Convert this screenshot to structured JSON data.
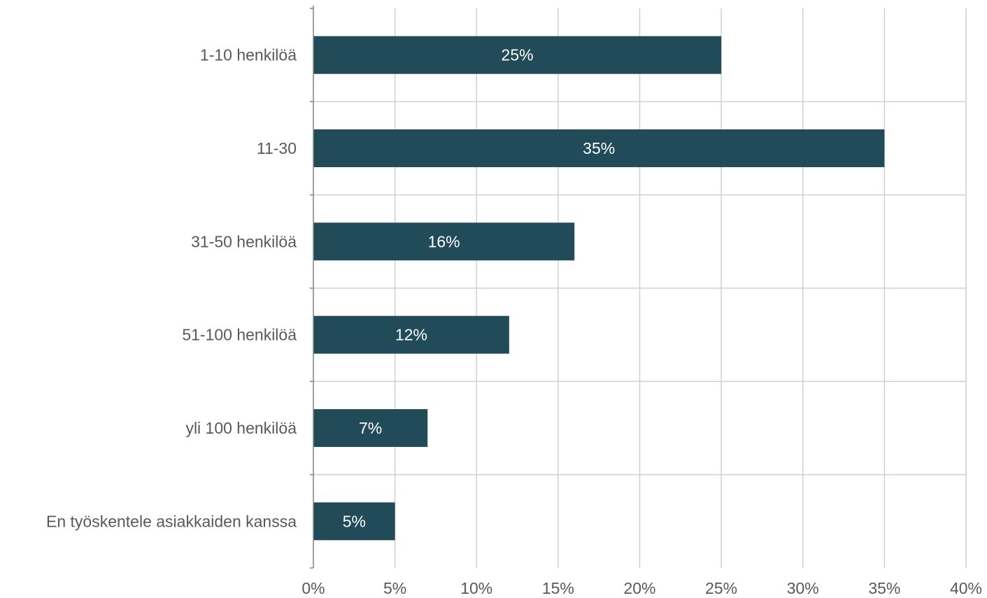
{
  "chart_data": {
    "type": "bar",
    "orientation": "horizontal",
    "categories": [
      "1-10 henkilöä",
      "11-30",
      "31-50 henkilöä",
      "51-100 henkilöä",
      "yli 100 henkilöä",
      "En työskentele asiakkaiden kanssa"
    ],
    "values": [
      25,
      35,
      16,
      12,
      7,
      5
    ],
    "data_labels": [
      "25%",
      "35%",
      "16%",
      "12%",
      "7%",
      "5%"
    ],
    "xlim": [
      0,
      40
    ],
    "x_ticks": [
      0,
      5,
      10,
      15,
      20,
      25,
      30,
      35,
      40
    ],
    "x_tick_labels": [
      "0%",
      "5%",
      "10%",
      "15%",
      "20%",
      "25%",
      "30%",
      "35%",
      "40%"
    ],
    "title": "",
    "xlabel": "",
    "ylabel": "",
    "grid": true,
    "legend": "none",
    "colors": {
      "bar": "#224b5a",
      "grid": "#d0d0d0",
      "axis": "#808080",
      "text": "#595959",
      "data_label": "#ffffff"
    }
  }
}
